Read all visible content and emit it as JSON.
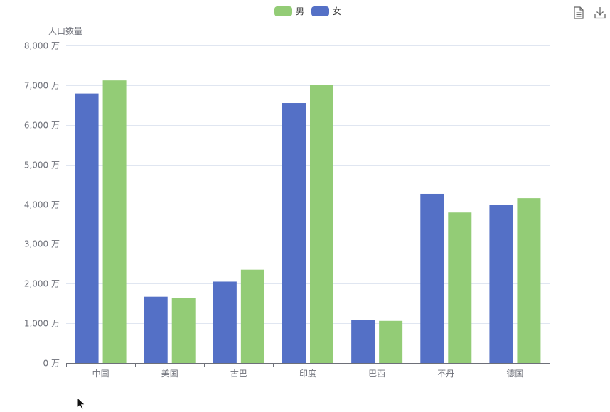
{
  "colors": {
    "male": "#93cc76",
    "female": "#5470c6",
    "grid": "#e0e6f1",
    "axis": "#6e7079"
  },
  "toolbox": {
    "data_view_icon": "document-icon",
    "save_icon": "download-icon"
  },
  "chart_data": {
    "type": "bar",
    "ylabel": "人口数量",
    "ylim": [
      0,
      8000
    ],
    "y_ticks": [
      "0 万",
      "1,000 万",
      "2,000 万",
      "3,000 万",
      "4,000 万",
      "5,000 万",
      "6,000 万",
      "7,000 万",
      "8,000 万"
    ],
    "categories": [
      "中国",
      "美国",
      "古巴",
      "印度",
      "巴西",
      "不丹",
      "德国"
    ],
    "legend": [
      "男",
      "女"
    ],
    "legend_position": "top-center",
    "grid": true,
    "series": [
      {
        "name": "女",
        "color": "#5470c6",
        "values": [
          6790,
          1670,
          2050,
          6550,
          1090,
          4260,
          3990
        ]
      },
      {
        "name": "男",
        "color": "#93cc76",
        "values": [
          7120,
          1630,
          2350,
          7000,
          1060,
          3790,
          4150
        ]
      }
    ]
  }
}
